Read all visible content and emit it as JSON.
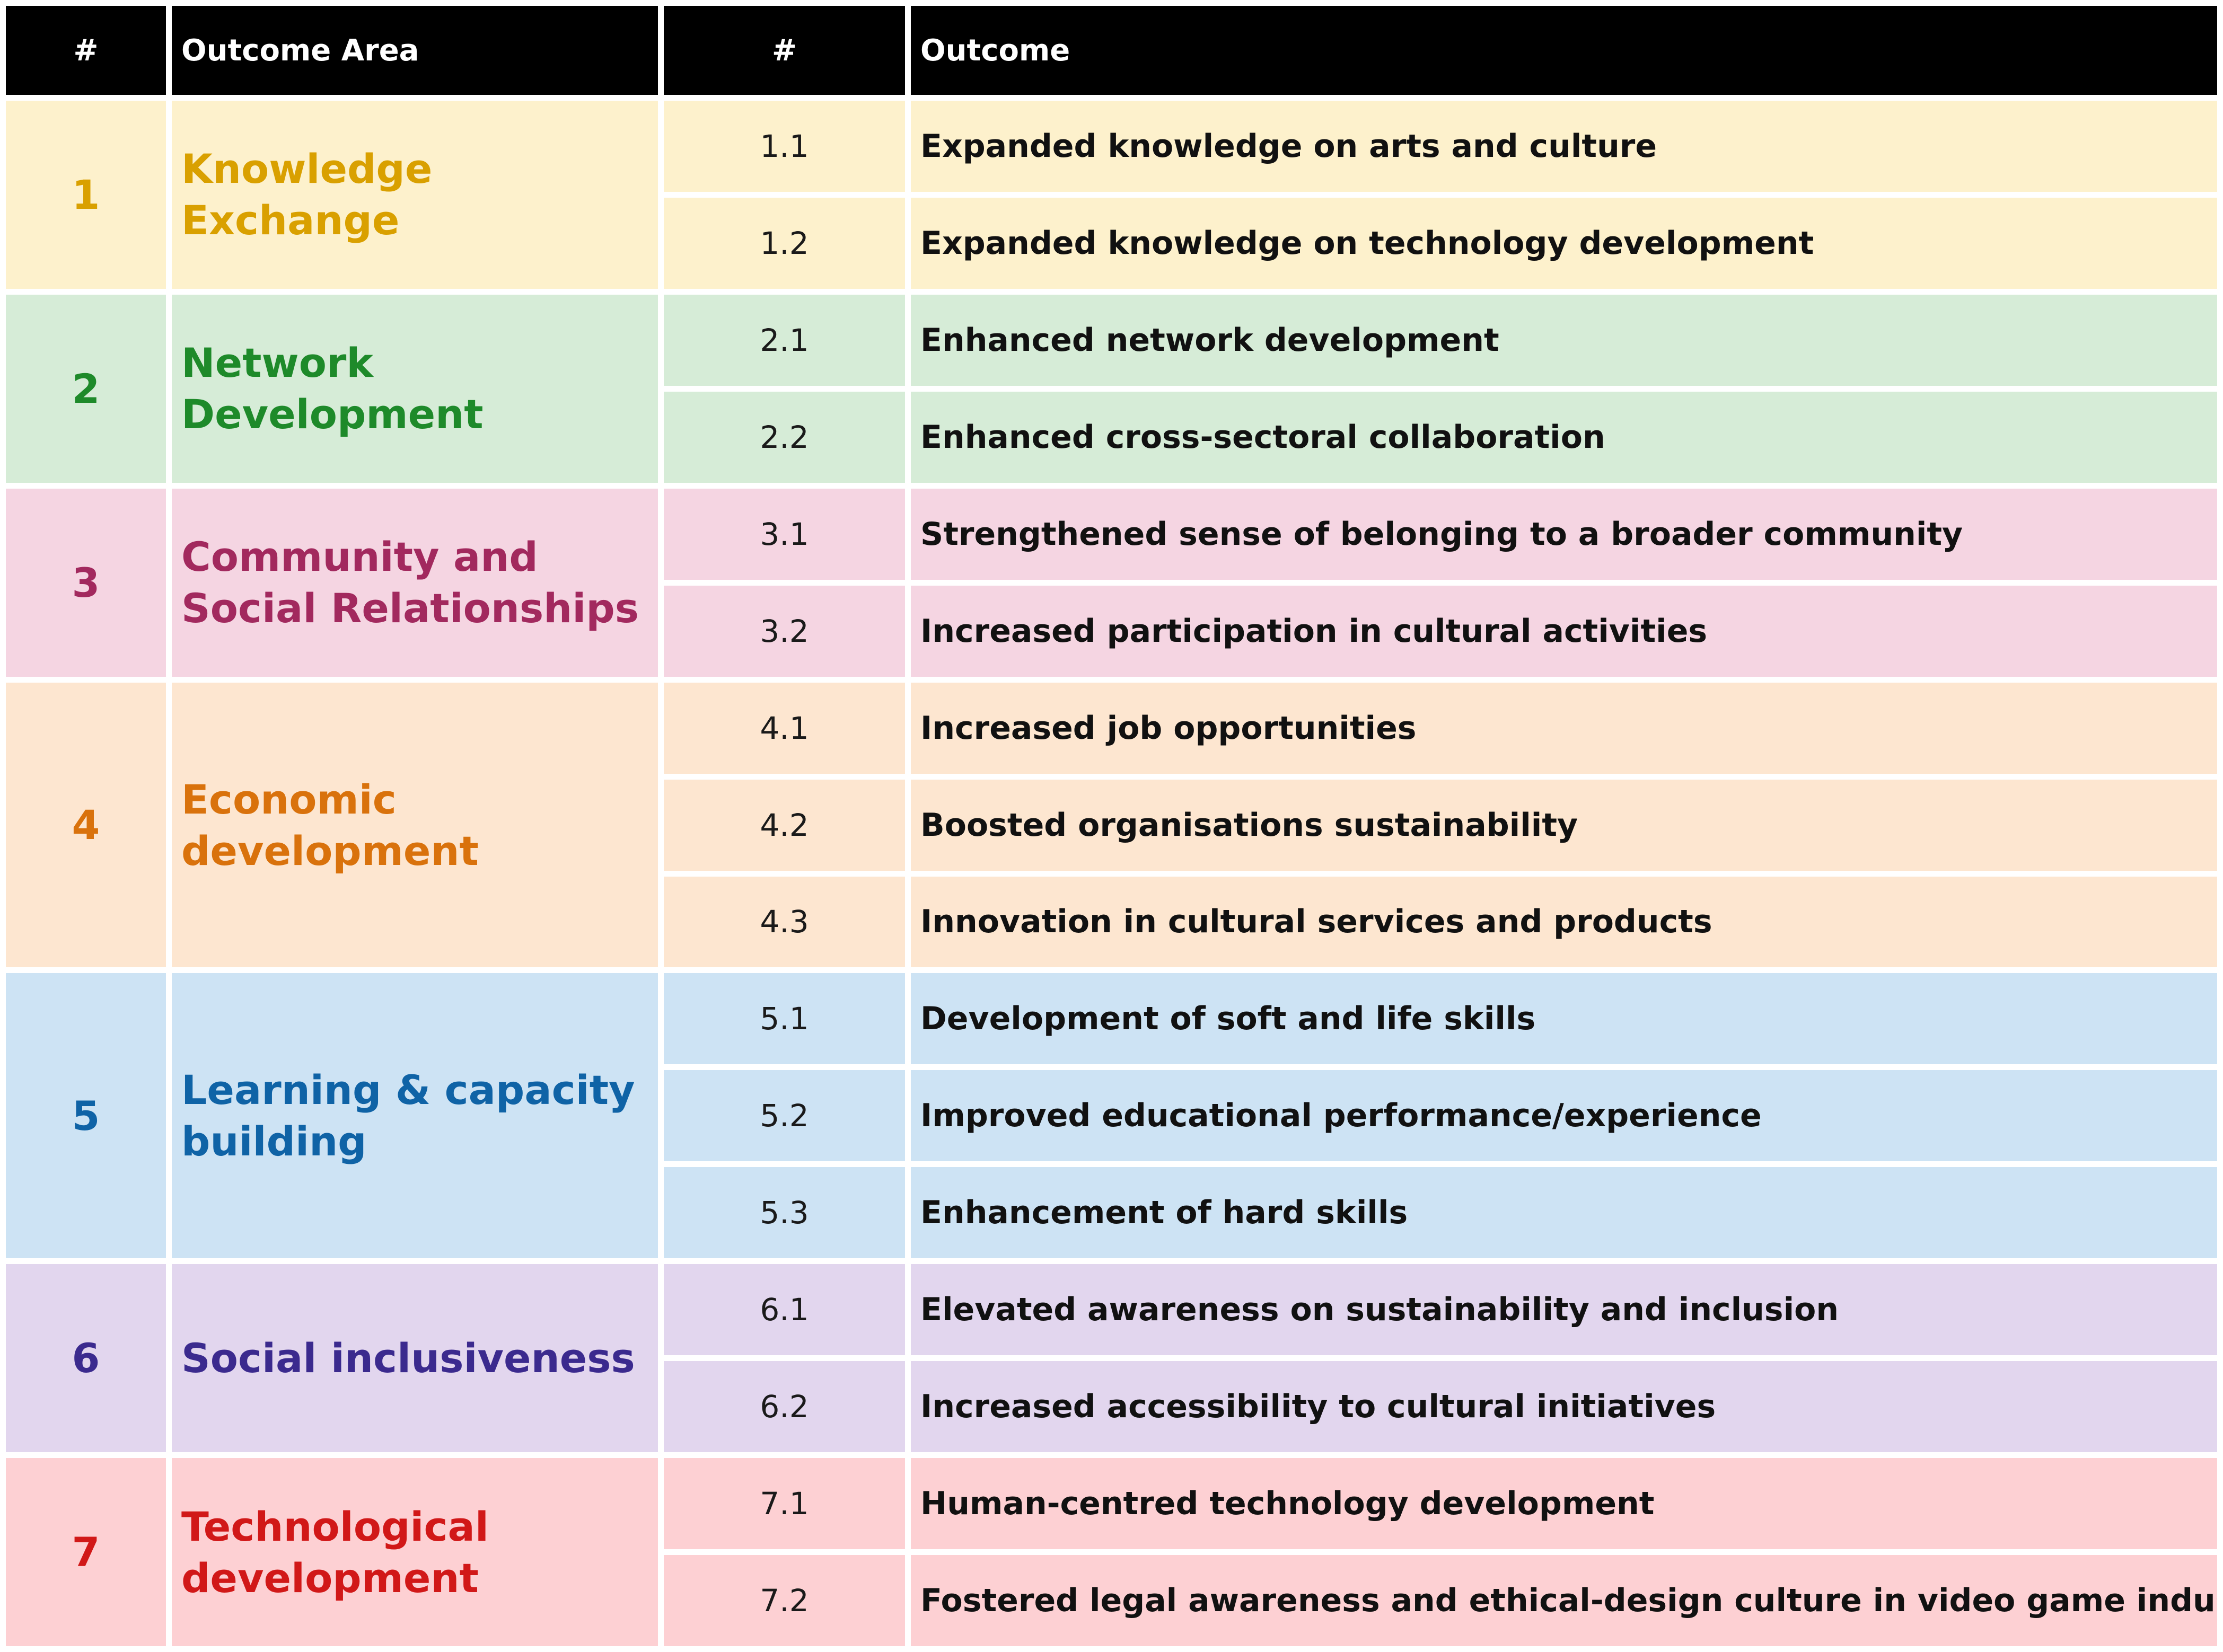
{
  "headers": {
    "area_num": "#",
    "area": "Outcome Area",
    "outcome_num": "#",
    "outcome": "Outcome"
  },
  "areas": [
    {
      "num": "1",
      "name": "Knowledge Exchange",
      "text_color": "#d9a000",
      "bg_color": "#fdf1cc",
      "outcomes": [
        {
          "num": "1.1",
          "text": "Expanded knowledge on arts and culture"
        },
        {
          "num": "1.2",
          "text": "Expanded knowledge on technology development"
        }
      ]
    },
    {
      "num": "2",
      "name": "Network Development",
      "text_color": "#1e8a2a",
      "bg_color": "#d6ecd7",
      "outcomes": [
        {
          "num": "2.1",
          "text": "Enhanced network development"
        },
        {
          "num": "2.2",
          "text": "Enhanced cross-sectoral collaboration"
        }
      ]
    },
    {
      "num": "3",
      "name": "Community and Social Relationships",
      "text_color": "#a2295e",
      "bg_color": "#f5d5e2",
      "outcomes": [
        {
          "num": "3.1",
          "text": "Strengthened sense of belonging to a broader community"
        },
        {
          "num": "3.2",
          "text": "Increased participation in cultural activities"
        }
      ]
    },
    {
      "num": "4",
      "name": "Economic development",
      "text_color": "#d9720c",
      "bg_color": "#fde6d0",
      "outcomes": [
        {
          "num": "4.1",
          "text": "Increased job opportunities"
        },
        {
          "num": "4.2",
          "text": "Boosted organisations sustainability"
        },
        {
          "num": "4.3",
          "text": "Innovation in cultural services and products"
        }
      ]
    },
    {
      "num": "5",
      "name": "Learning & capacity building",
      "text_color": "#0f63a6",
      "bg_color": "#cde3f4",
      "outcomes": [
        {
          "num": "5.1",
          "text": "Development of soft and life skills"
        },
        {
          "num": "5.2",
          "text": "Improved educational performance/experience"
        },
        {
          "num": "5.3",
          "text": "Enhancement of hard skills"
        }
      ]
    },
    {
      "num": "6",
      "name": "Social inclusiveness",
      "text_color": "#3b2a8e",
      "bg_color": "#e2d6ee",
      "outcomes": [
        {
          "num": "6.1",
          "text": "Elevated awareness on sustainability and inclusion"
        },
        {
          "num": "6.2",
          "text": "Increased accessibility to cultural initiatives"
        }
      ]
    },
    {
      "num": "7",
      "name": "Technological development",
      "text_color": "#d11818",
      "bg_color": "#fdd0d3",
      "outcomes": [
        {
          "num": "7.1",
          "text": "Human-centred technology development"
        },
        {
          "num": "7.2",
          "text": "Fostered legal awareness and ethical-design culture in video game industry"
        }
      ]
    }
  ]
}
